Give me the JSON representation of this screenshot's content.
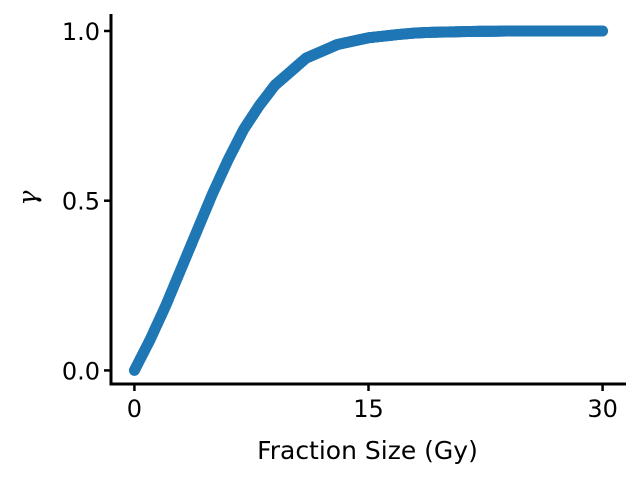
{
  "chart_data": {
    "type": "scatter",
    "title": "",
    "xlabel": "Fraction Size (Gy)",
    "ylabel": "γ",
    "xlim": [
      -1.5,
      31.5
    ],
    "ylim": [
      -0.04,
      1.05
    ],
    "xticks": [
      {
        "value": 0,
        "label": "0"
      },
      {
        "value": 15,
        "label": "15"
      },
      {
        "value": 30,
        "label": "30"
      }
    ],
    "yticks": [
      {
        "value": 0.0,
        "label": "0.0"
      },
      {
        "value": 0.5,
        "label": "0.5"
      },
      {
        "value": 1.0,
        "label": "1.0"
      }
    ],
    "grid": false,
    "legend": "none",
    "color": "#1f77b4",
    "series": [
      {
        "x": [
          0,
          1,
          2,
          3,
          4,
          5,
          6,
          7,
          8,
          9,
          10,
          11,
          12,
          13,
          14,
          15,
          16,
          17,
          18,
          19,
          20,
          21,
          22,
          23,
          24,
          25,
          26,
          27,
          28,
          29,
          30
        ],
        "y": [
          0.0,
          0.09,
          0.19,
          0.3,
          0.41,
          0.52,
          0.62,
          0.71,
          0.78,
          0.84,
          0.88,
          0.92,
          0.94,
          0.96,
          0.97,
          0.98,
          0.985,
          0.99,
          0.994,
          0.996,
          0.997,
          0.998,
          0.999,
          0.999,
          1.0,
          1.0,
          1.0,
          1.0,
          1.0,
          1.0,
          1.0
        ]
      }
    ]
  }
}
